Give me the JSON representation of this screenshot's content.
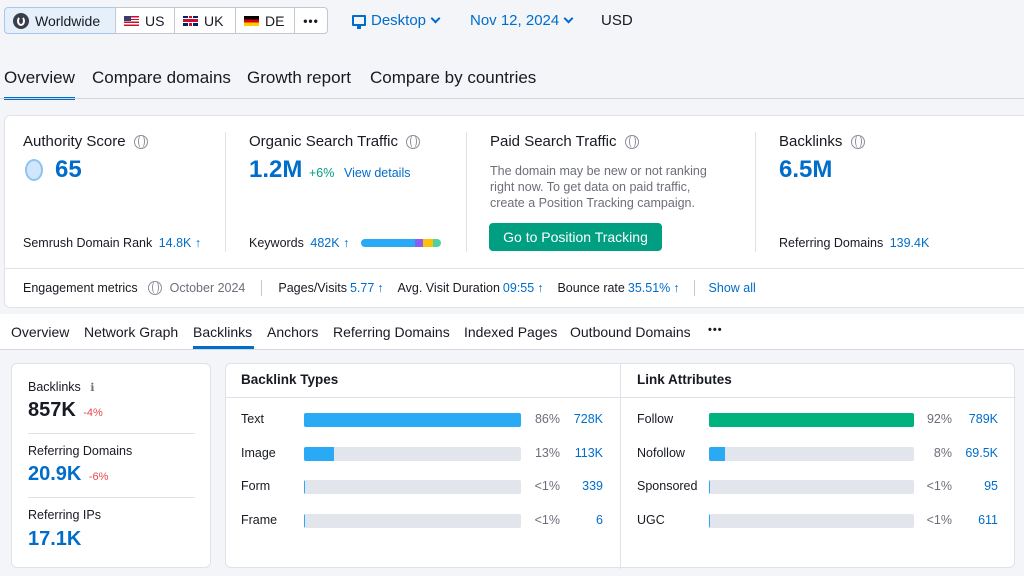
{
  "region": {
    "tabs": [
      "Worldwide",
      "US",
      "UK",
      "DE"
    ],
    "more": "•••",
    "device": "Desktop",
    "date": "Nov 12, 2024",
    "currency": "USD"
  },
  "main_tabs": [
    "Overview",
    "Compare domains",
    "Growth report",
    "Compare by countries"
  ],
  "summary": {
    "authority": {
      "label": "Authority Score",
      "value": "65",
      "rank_label": "Semrush Domain Rank",
      "rank_value": "14.8K"
    },
    "organic": {
      "label": "Organic Search Traffic",
      "value": "1.2M",
      "change": "+6%",
      "details": "View details",
      "keywords_label": "Keywords",
      "keywords_value": "482K"
    },
    "paid": {
      "label": "Paid Search Traffic",
      "message": "The domain may be new or not ranking right now. To get data on paid traffic, create a Position Tracking campaign.",
      "button": "Go to Position Tracking"
    },
    "backlinks": {
      "label": "Backlinks",
      "value": "6.5M",
      "ref_label": "Referring Domains",
      "ref_value": "139.4K"
    }
  },
  "engagement": {
    "label": "Engagement metrics",
    "month": "October 2024",
    "pages_label": "Pages/Visits",
    "pages_value": "5.77",
    "duration_label": "Avg. Visit Duration",
    "duration_value": "09:55",
    "bounce_label": "Bounce rate",
    "bounce_value": "35.51%",
    "show_all": "Show all"
  },
  "sub_tabs": [
    "Overview",
    "Network Graph",
    "Backlinks",
    "Anchors",
    "Referring Domains",
    "Indexed Pages",
    "Outbound Domains"
  ],
  "sub_more": "•••",
  "left_stats": [
    {
      "label": "Backlinks",
      "value": "857K",
      "change": "-4%"
    },
    {
      "label": "Referring Domains",
      "value": "20.9K",
      "change": "-6%"
    },
    {
      "label": "Referring IPs",
      "value": "17.1K",
      "change": ""
    }
  ],
  "backlink_types": {
    "title": "Backlink Types",
    "rows": [
      {
        "label": "Text",
        "pct": "86%",
        "count": "728K",
        "fill": 1.0
      },
      {
        "label": "Image",
        "pct": "13%",
        "count": "113K",
        "fill": 0.14
      },
      {
        "label": "Form",
        "pct": "<1%",
        "count": "339",
        "fill": 0.005
      },
      {
        "label": "Frame",
        "pct": "<1%",
        "count": "6",
        "fill": 0.005
      }
    ]
  },
  "link_attributes": {
    "title": "Link Attributes",
    "rows": [
      {
        "label": "Follow",
        "pct": "92%",
        "count": "789K",
        "fill": 1.0
      },
      {
        "label": "Nofollow",
        "pct": "8%",
        "count": "69.5K",
        "fill": 0.08
      },
      {
        "label": "Sponsored",
        "pct": "<1%",
        "count": "95",
        "fill": 0.005
      },
      {
        "label": "UGC",
        "pct": "<1%",
        "count": "611",
        "fill": 0.005
      }
    ]
  },
  "colors": {
    "accent": "#006dca",
    "types_bar": "#2aaaf5",
    "follow_bar": "#00b37e",
    "green_button": "#009f81"
  }
}
